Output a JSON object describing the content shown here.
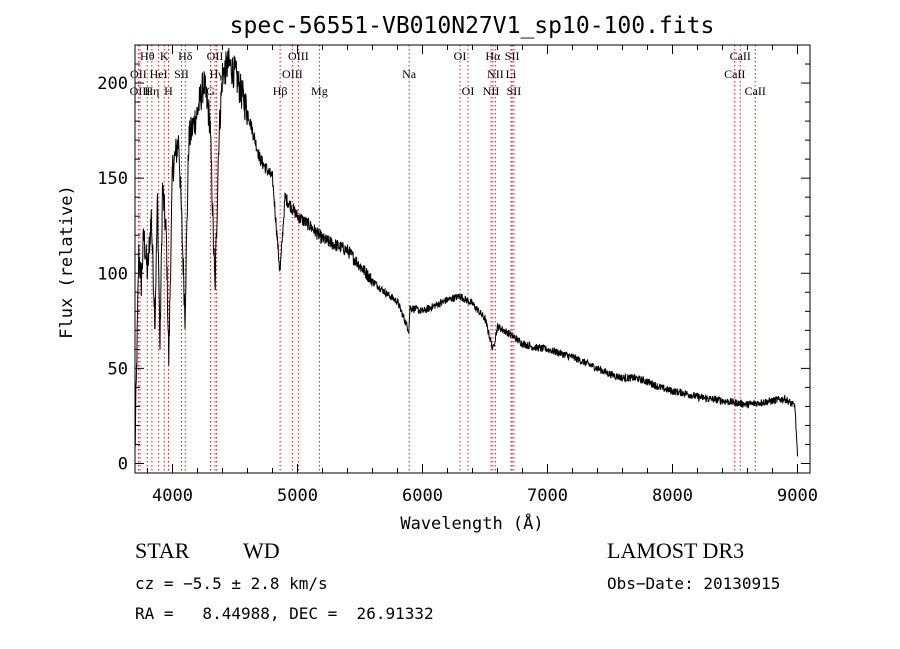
{
  "chart_data": {
    "type": "line",
    "title": "spec-56551-VB010N27V1_sp10-100.fits",
    "xlabel": "Wavelength (Å)",
    "ylabel": "Flux (relative)",
    "xlim": [
      3700,
      9100
    ],
    "ylim": [
      -5,
      220
    ],
    "xticks": [
      4000,
      5000,
      6000,
      7000,
      8000,
      9000
    ],
    "yticks": [
      0,
      50,
      100,
      150,
      200
    ],
    "grid": false,
    "series": [
      {
        "name": "flux",
        "anchors": [
          [
            3700,
            5
          ],
          [
            3710,
            40
          ],
          [
            3730,
            110
          ],
          [
            3750,
            95
          ],
          [
            3770,
            120
          ],
          [
            3800,
            100
          ],
          [
            3830,
            130
          ],
          [
            3860,
            75
          ],
          [
            3880,
            140
          ],
          [
            3900,
            60
          ],
          [
            3920,
            145
          ],
          [
            3950,
            120
          ],
          [
            3970,
            55
          ],
          [
            4000,
            155
          ],
          [
            4050,
            170
          ],
          [
            4100,
            78
          ],
          [
            4130,
            170
          ],
          [
            4200,
            185
          ],
          [
            4250,
            200
          ],
          [
            4300,
            180
          ],
          [
            4340,
            90
          ],
          [
            4370,
            170
          ],
          [
            4400,
            205
          ],
          [
            4450,
            210
          ],
          [
            4500,
            205
          ],
          [
            4550,
            195
          ],
          [
            4600,
            185
          ],
          [
            4700,
            160
          ],
          [
            4800,
            150
          ],
          [
            4860,
            100
          ],
          [
            4900,
            140
          ],
          [
            5000,
            130
          ],
          [
            5100,
            125
          ],
          [
            5200,
            118
          ],
          [
            5300,
            115
          ],
          [
            5400,
            112
          ],
          [
            5500,
            104
          ],
          [
            5600,
            96
          ],
          [
            5700,
            90
          ],
          [
            5800,
            85
          ],
          [
            5890,
            70
          ],
          [
            5900,
            82
          ],
          [
            6000,
            80
          ],
          [
            6100,
            83
          ],
          [
            6200,
            86
          ],
          [
            6300,
            88
          ],
          [
            6400,
            84
          ],
          [
            6500,
            76
          ],
          [
            6563,
            60
          ],
          [
            6600,
            72
          ],
          [
            6700,
            68
          ],
          [
            6800,
            63
          ],
          [
            6900,
            61
          ],
          [
            7000,
            60
          ],
          [
            7100,
            58
          ],
          [
            7200,
            56
          ],
          [
            7300,
            53
          ],
          [
            7400,
            50
          ],
          [
            7500,
            47
          ],
          [
            7600,
            45
          ],
          [
            7700,
            45
          ],
          [
            7800,
            43
          ],
          [
            7900,
            40
          ],
          [
            8000,
            38
          ],
          [
            8100,
            37
          ],
          [
            8200,
            35
          ],
          [
            8300,
            34
          ],
          [
            8400,
            33
          ],
          [
            8500,
            32
          ],
          [
            8600,
            31
          ],
          [
            8700,
            32
          ],
          [
            8800,
            33
          ],
          [
            8900,
            34
          ],
          [
            8980,
            30
          ],
          [
            9000,
            3
          ]
        ]
      }
    ],
    "lines": [
      {
        "label": "Hθ",
        "wl": 3798,
        "row": 0
      },
      {
        "label": "K",
        "wl": 3934,
        "row": 0
      },
      {
        "label": "Hδ",
        "wl": 4102,
        "row": 0
      },
      {
        "label": "OII",
        "wl": 4340,
        "row": 0
      },
      {
        "label": "OIII",
        "wl": 5007,
        "row": 0
      },
      {
        "label": "OI",
        "wl": 6300,
        "row": 0
      },
      {
        "label": "Hα",
        "wl": 6563,
        "row": 0
      },
      {
        "label": "SII",
        "wl": 6717,
        "row": 0
      },
      {
        "label": "CaII",
        "wl": 8542,
        "row": 0
      },
      {
        "label": "OII",
        "wl": 3727,
        "row": 1
      },
      {
        "label": "HeI",
        "wl": 3889,
        "row": 1
      },
      {
        "label": "SII",
        "wl": 4072,
        "row": 1
      },
      {
        "label": "Hγ",
        "wl": 4353,
        "row": 1
      },
      {
        "label": "OIII",
        "wl": 4959,
        "row": 1
      },
      {
        "label": "Na",
        "wl": 5893,
        "row": 1
      },
      {
        "label": "NII",
        "wl": 6583,
        "row": 1
      },
      {
        "label": "Li",
        "wl": 6708,
        "row": 1
      },
      {
        "label": "CaII",
        "wl": 8498,
        "row": 1
      },
      {
        "label": "OIII",
        "wl": 3740,
        "row": 2
      },
      {
        "label": "Hη",
        "wl": 3835,
        "row": 2
      },
      {
        "label": "H",
        "wl": 3968,
        "row": 2
      },
      {
        "label": "G",
        "wl": 4304,
        "row": 2
      },
      {
        "label": "Hβ",
        "wl": 4861,
        "row": 2
      },
      {
        "label": "Mg",
        "wl": 5175,
        "row": 2
      },
      {
        "label": "OI",
        "wl": 6364,
        "row": 2
      },
      {
        "label": "NII",
        "wl": 6548,
        "row": 2
      },
      {
        "label": "SII",
        "wl": 6731,
        "row": 2
      },
      {
        "label": "CaII",
        "wl": 8662,
        "row": 2
      }
    ]
  },
  "info": {
    "star_label": "STAR",
    "class_label": "WD",
    "survey": "LAMOST DR3",
    "cz": "cz = −5.5 ± 2.8 km/s",
    "obs_date": "Obs−Date: 20130915",
    "radec": "RA =   8.44988, DEC =  26.91332"
  }
}
